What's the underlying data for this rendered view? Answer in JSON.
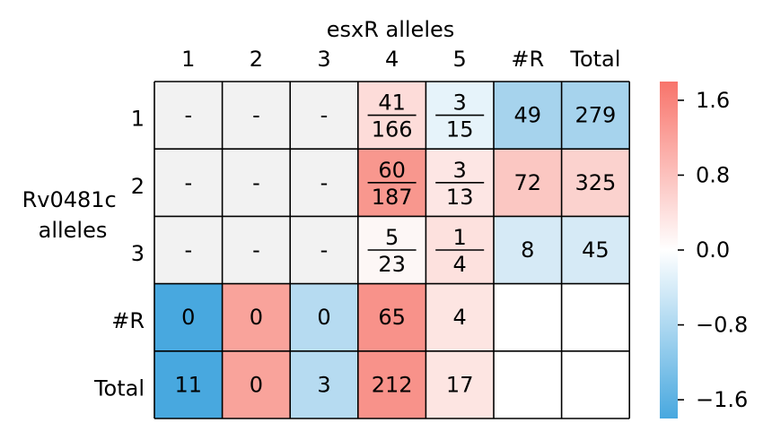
{
  "chart_data": {
    "type": "heatmap",
    "title": "esxR alleles",
    "ylabel_lines": [
      "Rv0481c",
      "alleles"
    ],
    "col_labels": [
      "1",
      "2",
      "3",
      "4",
      "5",
      "#R",
      "Total"
    ],
    "row_labels": [
      "1",
      "2",
      "3",
      "#R",
      "Total"
    ],
    "cells": [
      [
        {
          "text": "-",
          "color": "#f2f2f2"
        },
        {
          "text": "-",
          "color": "#f2f2f2"
        },
        {
          "text": "-",
          "color": "#f2f2f2"
        },
        {
          "num": "41",
          "den": "166",
          "color": "#fddcd9"
        },
        {
          "num": "3",
          "den": "15",
          "color": "#e6f3fa"
        },
        {
          "text": "49",
          "color": "#a6d3ed"
        },
        {
          "text": "279",
          "color": "#a6d3ed"
        }
      ],
      [
        {
          "text": "-",
          "color": "#f2f2f2"
        },
        {
          "text": "-",
          "color": "#f2f2f2"
        },
        {
          "text": "-",
          "color": "#f2f2f2"
        },
        {
          "num": "60",
          "den": "187",
          "color": "#f8978e"
        },
        {
          "num": "3",
          "den": "13",
          "color": "#fde6e4"
        },
        {
          "text": "72",
          "color": "#fbc7c2"
        },
        {
          "text": "325",
          "color": "#fbd2ce"
        }
      ],
      [
        {
          "text": "-",
          "color": "#f2f2f2"
        },
        {
          "text": "-",
          "color": "#f2f2f2"
        },
        {
          "text": "-",
          "color": "#f2f2f2"
        },
        {
          "num": "5",
          "den": "23",
          "color": "#fdf7f6"
        },
        {
          "num": "1",
          "den": "4",
          "color": "#fde1de"
        },
        {
          "text": "8",
          "color": "#d6eaf6"
        },
        {
          "text": "45",
          "color": "#d6eaf6"
        }
      ],
      [
        {
          "text": "0",
          "color": "#48a8df"
        },
        {
          "text": "0",
          "color": "#f9a39b"
        },
        {
          "text": "0",
          "color": "#b6dbf1"
        },
        {
          "text": "65",
          "color": "#f8928a"
        },
        {
          "text": "4",
          "color": "#fde5e2"
        },
        {
          "text": "",
          "color": "#ffffff"
        },
        {
          "text": "",
          "color": "#ffffff"
        }
      ],
      [
        {
          "text": "11",
          "color": "#48a8df"
        },
        {
          "text": "0",
          "color": "#f9a39b"
        },
        {
          "text": "3",
          "color": "#b6dbf1"
        },
        {
          "text": "212",
          "color": "#f8928a"
        },
        {
          "text": "17",
          "color": "#fde5e2"
        },
        {
          "text": "",
          "color": "#ffffff"
        },
        {
          "text": "",
          "color": "#ffffff"
        }
      ]
    ],
    "colorbar": {
      "range": [
        -1.8,
        1.8
      ],
      "ticks": [
        1.6,
        0.8,
        0.0,
        -0.8,
        -1.6
      ],
      "tick_labels": [
        "1.6",
        "0.8",
        "0.0",
        "−0.8",
        "−1.6"
      ],
      "colors": {
        "low": "#48a8df",
        "mid": "#ffffff",
        "high": "#f8746b"
      }
    }
  }
}
